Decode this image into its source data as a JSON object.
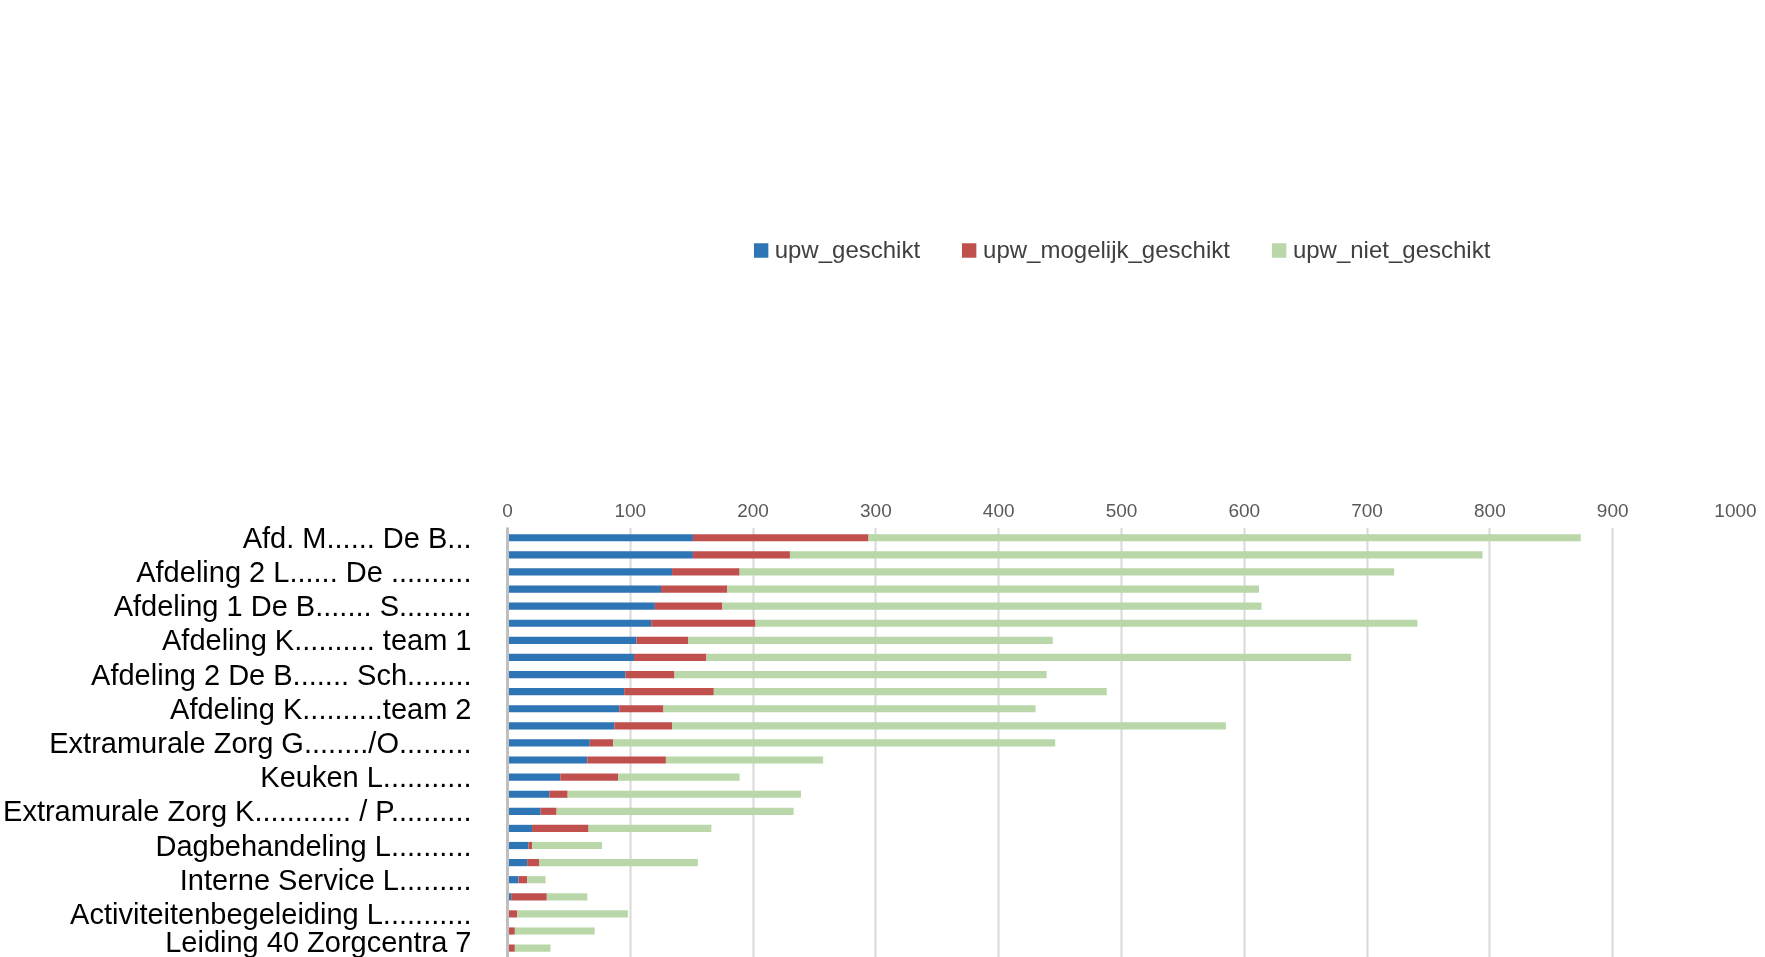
{
  "chart_data": {
    "type": "bar",
    "orientation": "horizontal",
    "stacked": true,
    "categories": [
      "Afd. M...... De B...",
      null,
      "Afdeling 2 L...... De ..........",
      null,
      "Afdeling 1 De B....... S.........",
      null,
      "Afdeling K.......... team 1",
      null,
      "Afdeling 2 De B....... Sch........",
      null,
      "Afdeling K..........team 2",
      null,
      "Extramurale Zorg G......../O.........",
      null,
      "Keuken L...........",
      null,
      "Extramurale Zorg K............ / P..........",
      null,
      "Dagbehandeling L..........",
      null,
      "Interne Service L.........",
      null,
      "Activiteitenbegeleiding L...........",
      null,
      "Leiding 40 Zorgcentra 7"
    ],
    "series": [
      {
        "name": "upw_geschikt",
        "color": "#2e75b6",
        "values": [
          151,
          151,
          134,
          125,
          120,
          117,
          105,
          103,
          96,
          95,
          91,
          87,
          67,
          65,
          43,
          34,
          27,
          20,
          17,
          16,
          9,
          3,
          0,
          0,
          0
        ]
      },
      {
        "name": "upw_mogelijk_geschikt",
        "color": "#c0504d",
        "values": [
          143,
          79,
          55,
          54,
          55,
          85,
          42,
          59,
          40,
          73,
          36,
          47,
          19,
          64,
          47,
          15,
          13,
          46,
          3,
          10,
          7,
          29,
          8,
          6,
          6
        ]
      },
      {
        "name": "upw_niet_geschikt",
        "color": "#b9d7a8",
        "values": [
          580,
          564,
          533,
          433,
          439,
          539,
          297,
          525,
          303,
          320,
          303,
          451,
          360,
          128,
          99,
          190,
          193,
          100,
          57,
          129,
          15,
          33,
          90,
          65,
          29
        ]
      }
    ],
    "xlim": [
      0,
      1000
    ],
    "xticks": [
      0,
      100,
      200,
      300,
      400,
      500,
      600,
      700,
      800,
      900,
      1000
    ],
    "grid": "x",
    "legend": "top"
  }
}
